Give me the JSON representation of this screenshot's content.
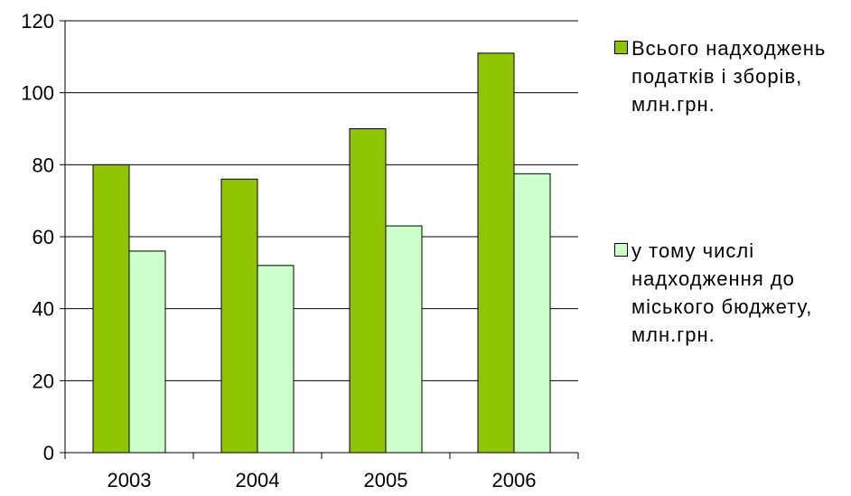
{
  "chart_data": {
    "type": "bar",
    "categories": [
      "2003",
      "2004",
      "2005",
      "2006"
    ],
    "series": [
      {
        "name": "Всього надходжень\nподатків і зборів,\nмлн.грн.",
        "color": "#8fc400",
        "values": [
          80,
          76,
          90,
          111
        ]
      },
      {
        "name": "у тому числі\nнадходження до\nміського бюджету,\nмлн.грн.",
        "color": "#ccffcc",
        "values": [
          56,
          52,
          63,
          77.5
        ]
      }
    ],
    "yticks": [
      "0",
      "20",
      "40",
      "60",
      "80",
      "100",
      "120"
    ],
    "ylim": [
      0,
      120
    ],
    "grid": true,
    "legend_position": "right"
  }
}
